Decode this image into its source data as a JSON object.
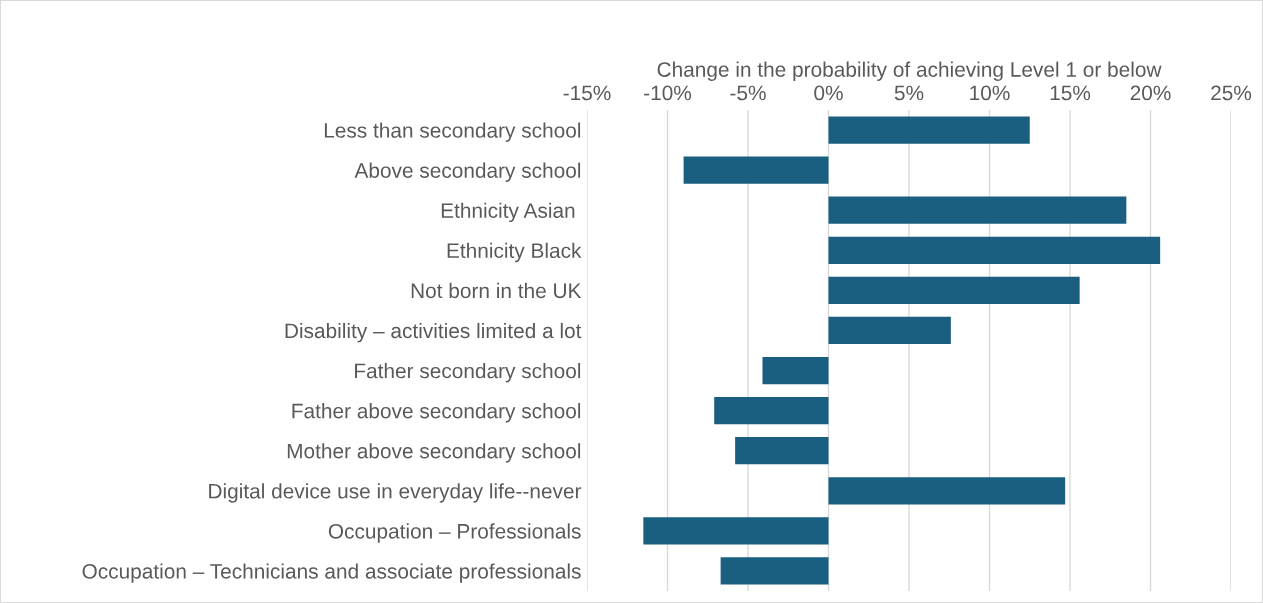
{
  "chart_data": {
    "type": "bar",
    "orientation": "horizontal",
    "xlabel": "Change in the probability of achieving Level 1 or below",
    "categories": [
      "Less than secondary school",
      "Above secondary school",
      "Ethnicity Asian ",
      "Ethnicity Black",
      "Not born in the UK",
      "Disability – activities limited a lot",
      "Father secondary school",
      "Father above secondary school",
      "Mother above secondary school",
      "Digital device use in everyday life--never",
      "Occupation – Professionals",
      "Occupation – Technicians and associate professionals"
    ],
    "values": [
      12.5,
      -9.0,
      18.5,
      20.6,
      15.6,
      7.6,
      -4.1,
      -7.1,
      -5.8,
      14.7,
      -11.5,
      -6.7
    ],
    "color": "#1a5e80",
    "xlim": [
      -15,
      25
    ],
    "xticks": [
      {
        "value": -15,
        "label": "-15%"
      },
      {
        "value": -10,
        "label": "-10%"
      },
      {
        "value": -5,
        "label": "-5%"
      },
      {
        "value": 0,
        "label": "0%"
      },
      {
        "value": 5,
        "label": "5%"
      },
      {
        "value": 10,
        "label": "10%"
      },
      {
        "value": 15,
        "label": "15%"
      },
      {
        "value": 20,
        "label": "20%"
      },
      {
        "value": 25,
        "label": "25%"
      }
    ],
    "grid": "x"
  }
}
